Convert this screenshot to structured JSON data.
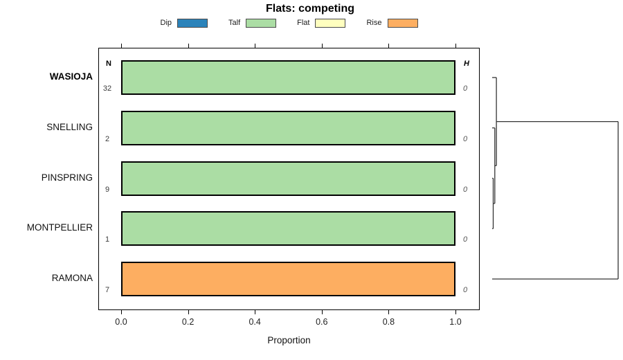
{
  "title": "Flats: competing",
  "legend": {
    "items": [
      {
        "label": "Dip",
        "color": "#2B83BA"
      },
      {
        "label": "Talf",
        "color": "#ABDDA4"
      },
      {
        "label": "Flat",
        "color": "#FFFFBF"
      },
      {
        "label": "Rise",
        "color": "#FDAE61"
      }
    ]
  },
  "columns": {
    "n_header": "N",
    "h_header": "H"
  },
  "rows": [
    {
      "label": "WASIOJA",
      "bold": true,
      "n": "32",
      "h": "0",
      "segments": [
        {
          "category": "Talf",
          "value": 1.0
        }
      ]
    },
    {
      "label": "SNELLING",
      "bold": false,
      "n": "2",
      "h": "0",
      "segments": [
        {
          "category": "Talf",
          "value": 1.0
        }
      ]
    },
    {
      "label": "PINSPRING",
      "bold": false,
      "n": "9",
      "h": "0",
      "segments": [
        {
          "category": "Talf",
          "value": 1.0
        }
      ]
    },
    {
      "label": "MONTPELLIER",
      "bold": false,
      "n": "1",
      "h": "0",
      "segments": [
        {
          "category": "Talf",
          "value": 1.0
        }
      ]
    },
    {
      "label": "RAMONA",
      "bold": false,
      "n": "7",
      "h": "0",
      "segments": [
        {
          "category": "Rise",
          "value": 1.0
        }
      ]
    }
  ],
  "axis": {
    "label": "Proportion",
    "ticks": [
      "0.0",
      "0.2",
      "0.4",
      "0.6",
      "0.8",
      "1.0"
    ],
    "tick_values": [
      0,
      0.2,
      0.4,
      0.6,
      0.8,
      1.0
    ],
    "range": [
      0,
      1
    ]
  },
  "dendrogram": {
    "merges": [
      {
        "a": "PINSPRING",
        "b": "MONTPELLIER",
        "height": 0
      },
      {
        "a": "SNELLING",
        "b": "node0",
        "height": 0
      },
      {
        "a": "WASIOJA",
        "b": "node1",
        "height": 0
      },
      {
        "a": "node2",
        "b": "RAMONA",
        "height": "max"
      }
    ],
    "line_color": "#333333"
  },
  "chart_data": {
    "type": "bar",
    "orientation": "horizontal",
    "stacked": true,
    "title": "Flats: competing",
    "categories": [
      "WASIOJA",
      "SNELLING",
      "PINSPRING",
      "MONTPELLIER",
      "RAMONA"
    ],
    "series": [
      {
        "name": "Dip",
        "color": "#2B83BA",
        "values": [
          0,
          0,
          0,
          0,
          0
        ]
      },
      {
        "name": "Talf",
        "color": "#ABDDA4",
        "values": [
          1.0,
          1.0,
          1.0,
          1.0,
          0
        ]
      },
      {
        "name": "Flat",
        "color": "#FFFFBF",
        "values": [
          0,
          0,
          0,
          0,
          0
        ]
      },
      {
        "name": "Rise",
        "color": "#FDAE61",
        "values": [
          0,
          0,
          0,
          0,
          1.0
        ]
      }
    ],
    "n_values": [
      32,
      2,
      9,
      1,
      7
    ],
    "h_values": [
      0,
      0,
      0,
      0,
      0
    ],
    "xlabel": "Proportion",
    "xlim": [
      0,
      1
    ],
    "grid": false,
    "legend_position": "top",
    "annotations": "Right margin shows hierarchical clustering dendrogram: ((WASIOJA,(SNELLING,(PINSPRING,MONTPELLIER))) all at height 0) joined with RAMONA at a large height."
  }
}
